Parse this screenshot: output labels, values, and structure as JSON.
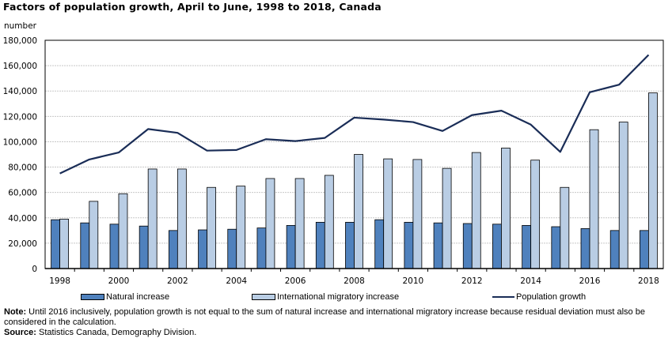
{
  "title": "Factors of population growth, April to June, 1998 to 2018, Canada",
  "colors": {
    "natural": "#4f81bd",
    "migratory": "#b9cde4",
    "line": "#1a2d57",
    "grid": "#c8c8c8"
  },
  "chart_data": {
    "type": "bar",
    "title": "Factors of population growth, April to June, 1998 to 2018, Canada",
    "xlabel": "",
    "ylabel": "number",
    "ylim": [
      0,
      180000
    ],
    "yticks": [
      0,
      20000,
      40000,
      60000,
      80000,
      100000,
      120000,
      140000,
      160000,
      180000
    ],
    "ytick_labels": [
      "0",
      "20,000",
      "40,000",
      "60,000",
      "80,000",
      "100,000",
      "120,000",
      "140,000",
      "160,000",
      "180,000"
    ],
    "grid": true,
    "legend_position": "bottom",
    "categories": [
      "1998",
      "1999",
      "2000",
      "2001",
      "2002",
      "2003",
      "2004",
      "2005",
      "2006",
      "2007",
      "2008",
      "2009",
      "2010",
      "2011",
      "2012",
      "2013",
      "2014",
      "2015",
      "2016",
      "2017",
      "2018"
    ],
    "xtick_labels": [
      "1998",
      "",
      "2000",
      "",
      "2002",
      "",
      "2004",
      "",
      "2006",
      "",
      "2008",
      "",
      "2010",
      "",
      "2012",
      "",
      "2014",
      "",
      "2016",
      "",
      "2018"
    ],
    "series": [
      {
        "name": "Natural increase",
        "type": "bar",
        "values": [
          38500,
          36000,
          35000,
          33500,
          30000,
          30500,
          31000,
          32000,
          34000,
          36500,
          36500,
          38500,
          36500,
          36000,
          35500,
          35000,
          34000,
          33000,
          31500,
          30000,
          30000
        ]
      },
      {
        "name": "International migratory increase",
        "type": "bar",
        "values": [
          39000,
          53000,
          59000,
          78500,
          78500,
          64000,
          65000,
          71000,
          71000,
          73500,
          90000,
          86500,
          86000,
          79000,
          91500,
          95000,
          85500,
          64000,
          109500,
          115500,
          138500
        ]
      },
      {
        "name": "Population growth",
        "type": "line",
        "values": [
          75000,
          86000,
          91500,
          110000,
          107000,
          93000,
          93500,
          102000,
          100500,
          103000,
          119000,
          117500,
          115500,
          108500,
          121000,
          124500,
          113500,
          92000,
          139000,
          145000,
          168500
        ]
      }
    ]
  },
  "legend": {
    "natural": "Natural increase",
    "migratory": "International migratory increase",
    "line": "Population growth"
  },
  "notes": {
    "note_label": "Note:",
    "note_text": " Until 2016 inclusively, population growth is not equal to the sum of natural increase and international migratory increase because residual deviation must also be considered in the calculation.",
    "source_label": "Source:",
    "source_text": " Statistics Canada, Demography Division."
  }
}
